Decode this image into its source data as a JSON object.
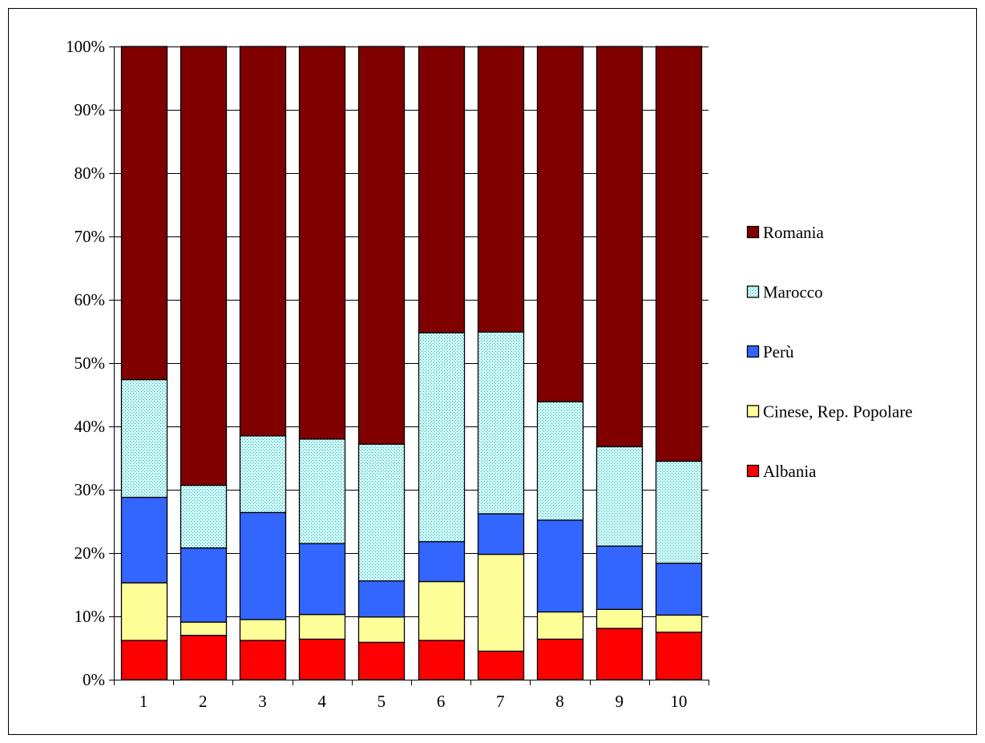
{
  "chart_data": {
    "type": "bar",
    "stacked": true,
    "percent": true,
    "categories": [
      "1",
      "2",
      "3",
      "4",
      "5",
      "6",
      "7",
      "8",
      "9",
      "10"
    ],
    "y_ticks": [
      "0%",
      "10%",
      "20%",
      "30%",
      "40%",
      "50%",
      "60%",
      "70%",
      "80%",
      "90%",
      "100%"
    ],
    "ylim": [
      0,
      100
    ],
    "grid": true,
    "legend_position": "right",
    "series": [
      {
        "name": "Albania",
        "color": "#ff0000",
        "pattern": "solid",
        "values": [
          6.2,
          7.0,
          6.2,
          6.4,
          5.9,
          6.2,
          4.5,
          6.4,
          8.1,
          7.5
        ]
      },
      {
        "name": "Cinese, Rep. Popolare",
        "color": "#ffff99",
        "pattern": "solid",
        "values": [
          9.1,
          2.1,
          3.3,
          3.9,
          4.0,
          9.3,
          15.3,
          4.3,
          3.0,
          2.7
        ]
      },
      {
        "name": "Perù",
        "color": "#3366ff",
        "pattern": "solid",
        "values": [
          13.5,
          11.7,
          16.9,
          11.2,
          5.7,
          6.3,
          6.4,
          14.5,
          10.0,
          8.2
        ]
      },
      {
        "name": "Marocco",
        "color": "#ccffff",
        "pattern": "dotted",
        "values": [
          18.6,
          9.9,
          12.1,
          16.5,
          21.6,
          33.0,
          28.7,
          18.7,
          15.7,
          16.1
        ]
      },
      {
        "name": "Romania",
        "color": "#800000",
        "pattern": "solid",
        "values": [
          52.6,
          69.3,
          61.5,
          62.0,
          62.8,
          45.2,
          45.1,
          56.1,
          63.2,
          65.5
        ]
      }
    ]
  }
}
